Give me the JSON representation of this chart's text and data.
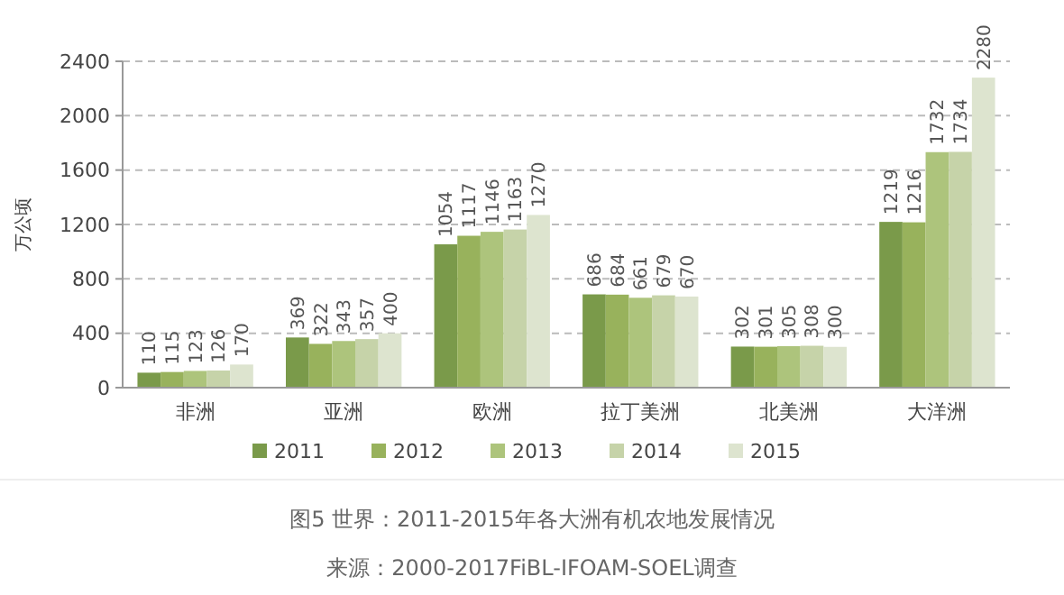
{
  "chart_data": {
    "type": "bar",
    "ylabel": "万公顷",
    "categories": [
      "非洲",
      "亚洲",
      "欧洲",
      "拉丁美洲",
      "北美洲",
      "大洋洲"
    ],
    "series": [
      {
        "name": "2011",
        "color": "#7a9a4a",
        "values": [
          110,
          369,
          1054,
          686,
          302,
          1219
        ]
      },
      {
        "name": "2012",
        "color": "#98b25c",
        "values": [
          115,
          322,
          1117,
          684,
          301,
          1216
        ]
      },
      {
        "name": "2013",
        "color": "#adc47c",
        "values": [
          123,
          343,
          1146,
          661,
          305,
          1732
        ]
      },
      {
        "name": "2014",
        "color": "#c6d3a9",
        "values": [
          126,
          357,
          1163,
          679,
          308,
          1734
        ]
      },
      {
        "name": "2015",
        "color": "#dde4cf",
        "values": [
          170,
          400,
          1270,
          670,
          300,
          2280
        ]
      }
    ],
    "ylim": [
      0,
      2400
    ],
    "yticks": [
      0,
      400,
      800,
      1200,
      1600,
      2000,
      2400
    ],
    "grid": "y",
    "legend": "bottom",
    "data_labels": true,
    "annotations": [
      "图5 世界：2011-2015年各大洲有机农地发展情况",
      "来源：2000-2017FiBL-IFOAM-SOEL调查"
    ]
  }
}
